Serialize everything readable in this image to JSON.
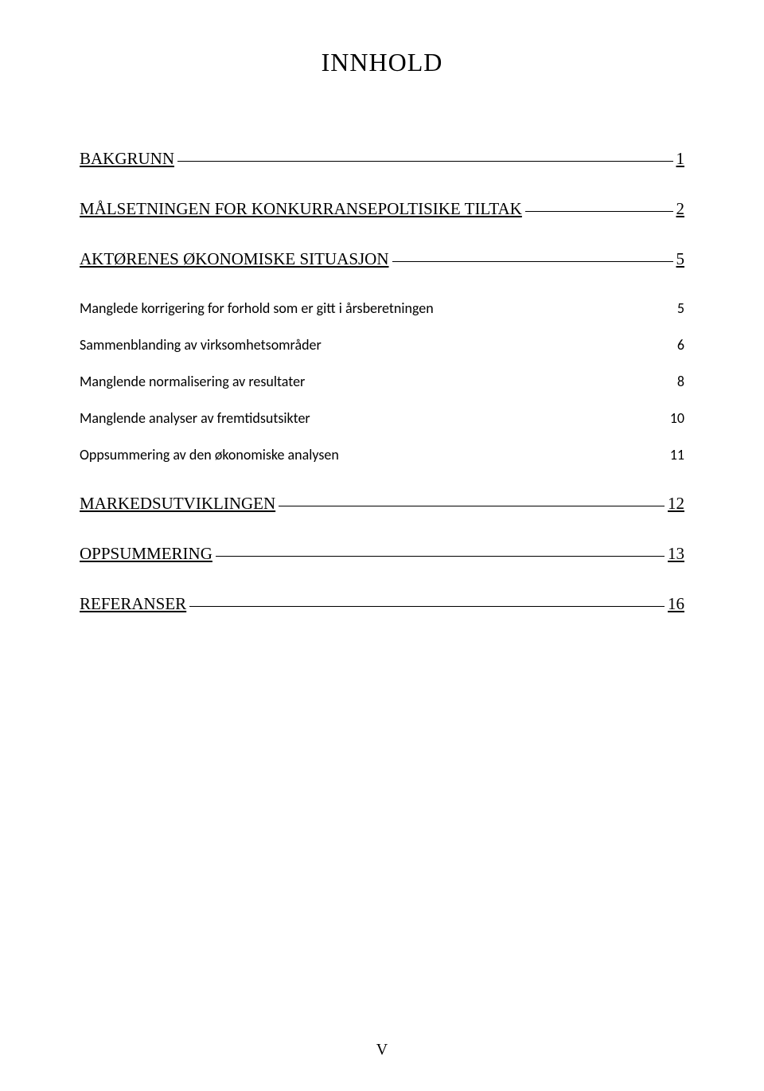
{
  "title": "INNHOLD",
  "entries": [
    {
      "label": "BAKGRUNN",
      "page": "1",
      "level": 1,
      "underline_leader": true
    },
    {
      "label": "MÅLSETNINGEN FOR KONKURRANSEPOLTISIKE TILTAK",
      "page": "2",
      "level": 1,
      "underline_leader": true
    },
    {
      "label": "AKTØRENES ØKONOMISKE SITUASJON",
      "page": "5",
      "level": 1,
      "underline_leader": true
    },
    {
      "label": "Manglede korrigering for forhold som er gitt i årsberetningen",
      "page": "5",
      "level": 2,
      "underline_leader": false
    },
    {
      "label": "Sammenblanding av virksomhetsområder",
      "page": "6",
      "level": 2,
      "underline_leader": false
    },
    {
      "label": "Manglende normalisering av resultater",
      "page": "8",
      "level": 2,
      "underline_leader": false
    },
    {
      "label": "Manglende analyser av fremtidsutsikter",
      "page": "10",
      "level": 2,
      "underline_leader": false
    },
    {
      "label": "Oppsummering av den økonomiske analysen",
      "page": "11",
      "level": 2,
      "underline_leader": false,
      "last_in_group": true
    },
    {
      "label": "MARKEDSUTVIKLINGEN",
      "page": "12",
      "level": 1,
      "underline_leader": true
    },
    {
      "label": "OPPSUMMERING",
      "page": "13",
      "level": 1,
      "underline_leader": true
    },
    {
      "label": "REFERANSER",
      "page": "16",
      "level": 1,
      "underline_leader": true
    }
  ],
  "page_number": "V",
  "colors": {
    "background": "#ffffff",
    "text": "#000000",
    "rule": "#000000"
  },
  "typography": {
    "title_fontsize": 32,
    "level1_fontsize": 21,
    "level2_fontsize": 18,
    "page_number_fontsize": 20,
    "serif_family": "Times New Roman",
    "sans_family": "Calibri"
  }
}
